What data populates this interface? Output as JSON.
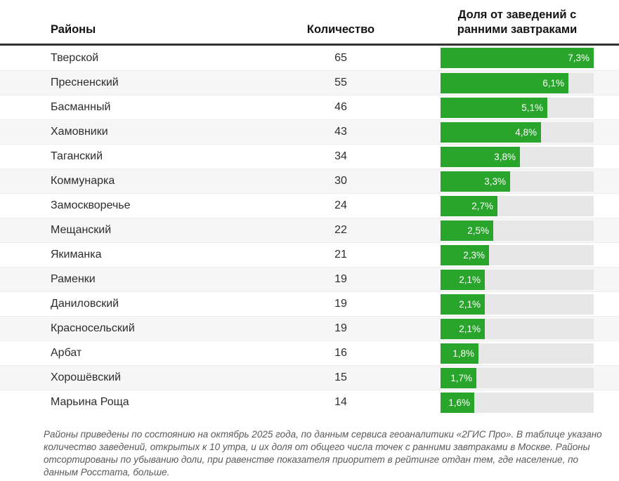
{
  "table": {
    "col_district": "Районы",
    "col_count": "Количество",
    "col_share": "Доля от заведений с\nранними завтраками",
    "bar_color": "#2aa52c",
    "track_color": "#e7e7e7",
    "max_share": 7.3,
    "rows": [
      {
        "district": "Тверской",
        "count": "65",
        "share_label": "7,3%",
        "share_value": 7.3
      },
      {
        "district": "Пресненский",
        "count": "55",
        "share_label": "6,1%",
        "share_value": 6.1
      },
      {
        "district": "Басманный",
        "count": "46",
        "share_label": "5,1%",
        "share_value": 5.1
      },
      {
        "district": "Хамовники",
        "count": "43",
        "share_label": "4,8%",
        "share_value": 4.8
      },
      {
        "district": "Таганский",
        "count": "34",
        "share_label": "3,8%",
        "share_value": 3.8
      },
      {
        "district": "Коммунарка",
        "count": "30",
        "share_label": "3,3%",
        "share_value": 3.3
      },
      {
        "district": "Замоскворечье",
        "count": "24",
        "share_label": "2,7%",
        "share_value": 2.7
      },
      {
        "district": "Мещанский",
        "count": "22",
        "share_label": "2,5%",
        "share_value": 2.5
      },
      {
        "district": "Якиманка",
        "count": "21",
        "share_label": "2,3%",
        "share_value": 2.3
      },
      {
        "district": "Раменки",
        "count": "19",
        "share_label": "2,1%",
        "share_value": 2.1
      },
      {
        "district": "Даниловский",
        "count": "19",
        "share_label": "2,1%",
        "share_value": 2.1
      },
      {
        "district": "Красносельский",
        "count": "19",
        "share_label": "2,1%",
        "share_value": 2.1
      },
      {
        "district": "Арбат",
        "count": "16",
        "share_label": "1,8%",
        "share_value": 1.8
      },
      {
        "district": "Хорошёвский",
        "count": "15",
        "share_label": "1,7%",
        "share_value": 1.7
      },
      {
        "district": "Марьина Роща",
        "count": "14",
        "share_label": "1,6%",
        "share_value": 1.6
      }
    ]
  },
  "footnote": "Районы приведены по состоянию на октябрь 2025 года, по данным сервиса геоаналитики «2ГИС Про». В таблице указано количество заведений, открытых к 10 утра, и их доля от общего числа точек с ранними завтраками в Москве. Районы отсортированы по убыванию доли, при равенстве показателя приоритет в рейтинге отдан тем, где население, по данным Росстата, больше.",
  "chart_data": {
    "type": "bar",
    "orientation": "horizontal",
    "title": "Доля от заведений с ранними завтраками",
    "categories": [
      "Тверской",
      "Пресненский",
      "Басманный",
      "Хамовники",
      "Таганский",
      "Коммунарка",
      "Замоскворечье",
      "Мещанский",
      "Якиманка",
      "Раменки",
      "Даниловский",
      "Красносельский",
      "Арбат",
      "Хорошёвский",
      "Марьина Роща"
    ],
    "series": [
      {
        "name": "Количество",
        "values": [
          65,
          55,
          46,
          43,
          34,
          30,
          24,
          22,
          21,
          19,
          19,
          19,
          16,
          15,
          14
        ]
      },
      {
        "name": "Доля от заведений с ранними завтраками, %",
        "values": [
          7.3,
          6.1,
          5.1,
          4.8,
          3.8,
          3.3,
          2.7,
          2.5,
          2.3,
          2.1,
          2.1,
          2.1,
          1.8,
          1.7,
          1.6
        ]
      }
    ],
    "data_labels": [
      "7,3%",
      "6,1%",
      "5,1%",
      "4,8%",
      "3,8%",
      "3,3%",
      "2,7%",
      "2,5%",
      "2,3%",
      "2,1%",
      "2,1%",
      "2,1%",
      "1,8%",
      "1,7%",
      "1,6%"
    ],
    "xlim": [
      0,
      7.3
    ],
    "grid": false,
    "legend": false,
    "bar_color": "#2aa52c",
    "track_color": "#e7e7e7"
  }
}
